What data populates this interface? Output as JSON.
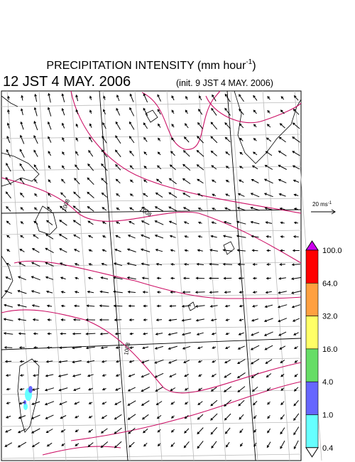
{
  "header": {
    "title": "PRECIPITATION INTENSITY (mm hour",
    "title_exponent": "-1",
    "title_close": ")",
    "valid_time": "12 JST 4 MAY. 2006",
    "init_time": "(init. 9 JST 4 MAY. 2006)"
  },
  "wind_reference": {
    "label": "20 ms",
    "exponent": "-1"
  },
  "contour_labels": [
    "1008",
    "1008",
    "1008"
  ],
  "colorbar": {
    "labels": [
      "100.0",
      "64.0",
      "32.0",
      "16.0",
      "4.0",
      "1.0",
      "0.4"
    ],
    "over_color": "#cc00ee",
    "colors": [
      "#ff0000",
      "#ffa040",
      "#ffff66",
      "#66dd66",
      "#6666ff",
      "#66ffff"
    ],
    "under_color": "#ffffff"
  }
}
